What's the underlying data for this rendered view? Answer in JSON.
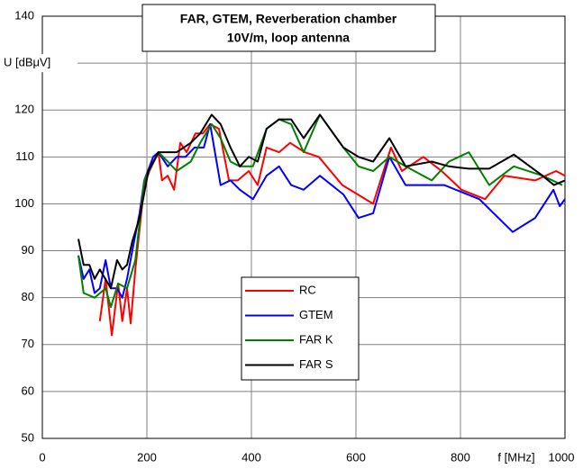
{
  "chart_data": {
    "type": "line",
    "title": "FAR, GTEM, Reverberation chamber",
    "subtitle": "10V/m, loop antenna",
    "xlabel": "f [MHz]",
    "xlim": [
      0,
      1000
    ],
    "xticks": [
      0,
      200,
      400,
      600,
      800,
      1000
    ],
    "ylim": [
      50,
      140
    ],
    "yticks": [
      50,
      60,
      70,
      80,
      90,
      100,
      110,
      120,
      {
        "value": 130,
        "label": "U [dBμV]"
      },
      140
    ],
    "grid": true,
    "series": [
      {
        "name": "RC",
        "color": "#ff0000",
        "x": [
          110,
          121,
          133,
          145,
          153,
          162,
          169,
          178,
          195,
          205,
          222,
          229,
          240,
          252,
          264,
          276,
          293,
          307,
          321,
          338,
          357,
          374,
          395,
          412,
          429,
          453,
          474,
          502,
          529,
          574,
          633,
          667,
          688,
          729,
          764,
          802,
          847,
          884,
          943,
          983,
          1000
        ],
        "values": [
          75,
          84,
          72,
          83,
          75,
          82,
          74.5,
          86,
          104,
          107,
          111,
          105,
          106,
          103,
          113,
          111,
          115,
          115,
          117,
          116,
          105,
          105,
          107,
          104,
          112,
          111,
          113,
          111,
          110,
          104,
          100,
          112,
          107,
          110,
          107,
          103,
          101,
          106,
          105,
          107,
          106
        ]
      },
      {
        "name": "GTEM",
        "color": "#0000ff",
        "x": [
          69,
          79,
          90,
          100,
          110,
          121,
          131,
          143,
          153,
          162,
          172,
          186,
          195,
          212,
          222,
          240,
          257,
          274,
          291,
          309,
          321,
          341,
          360,
          378,
          403,
          429,
          453,
          476,
          500,
          531,
          576,
          605,
          633,
          664,
          695,
          769,
          836,
          900,
          943,
          978,
          990,
          1000
        ],
        "values": [
          89,
          84,
          86,
          81,
          82,
          88,
          82,
          82,
          80,
          84,
          90,
          98,
          105,
          110,
          111,
          108,
          110,
          110,
          112,
          112,
          117,
          104,
          105,
          103,
          101,
          106,
          108,
          104,
          103,
          106,
          102,
          97,
          98,
          110,
          104,
          104,
          101,
          94,
          97,
          103,
          99.5,
          101
        ]
      },
      {
        "name": "FAR K",
        "color": "#008000",
        "x": [
          69,
          79,
          100,
          121,
          131,
          145,
          162,
          178,
          195,
          222,
          240,
          257,
          284,
          302,
          324,
          341,
          360,
          378,
          403,
          429,
          453,
          476,
          500,
          531,
          576,
          605,
          633,
          664,
          695,
          745,
          778,
          816,
          855,
          902,
          957,
          995
        ],
        "values": [
          89,
          81,
          80,
          82,
          78,
          83,
          82,
          88,
          105,
          111,
          109,
          107,
          109,
          113,
          117,
          114,
          109,
          108,
          108,
          116,
          118,
          117,
          111,
          119,
          112,
          108,
          107,
          110,
          108,
          105,
          109,
          111,
          104,
          108,
          106,
          104
        ]
      },
      {
        "name": "FAR S",
        "color": "#000000",
        "x": [
          69,
          79,
          90,
          100,
          110,
          131,
          143,
          153,
          162,
          172,
          186,
          203,
          222,
          240,
          257,
          284,
          302,
          324,
          341,
          360,
          378,
          395,
          412,
          429,
          453,
          476,
          500,
          531,
          576,
          605,
          633,
          664,
          695,
          745,
          778,
          816,
          855,
          902,
          957,
          979,
          1000
        ],
        "values": [
          92.5,
          87,
          87,
          84,
          86,
          82,
          88,
          86,
          87,
          92,
          97,
          107,
          111,
          111,
          111,
          113,
          115,
          119,
          117,
          112,
          108,
          110,
          109,
          116,
          118,
          118,
          114,
          119,
          112,
          110,
          109,
          114,
          108,
          109,
          108,
          107.5,
          107.5,
          110.5,
          106,
          104,
          105
        ]
      }
    ]
  }
}
